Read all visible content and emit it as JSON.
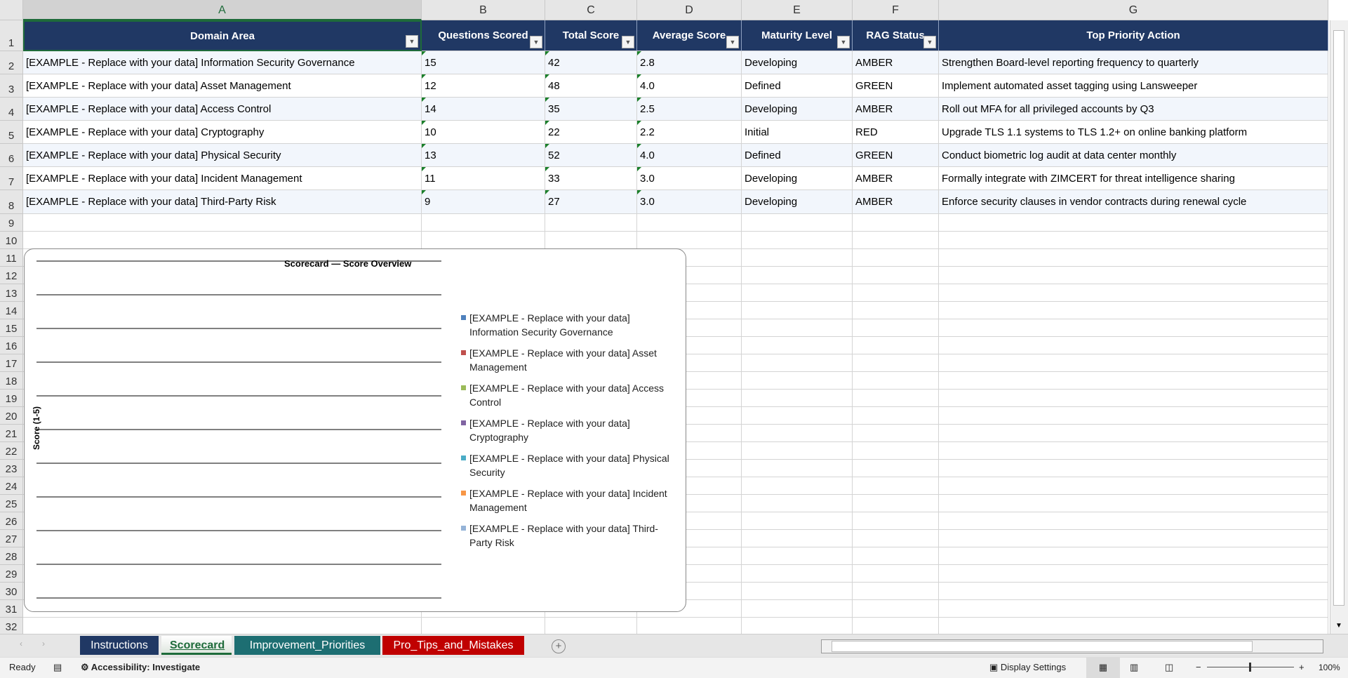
{
  "columns": [
    "A",
    "B",
    "C",
    "D",
    "E",
    "F",
    "G"
  ],
  "table": {
    "headers": [
      "Domain Area",
      "Questions Scored",
      "Total Score",
      "Average Score",
      "Maturity Level",
      "RAG Status",
      "Top Priority Action"
    ],
    "rows": [
      [
        "[EXAMPLE - Replace with your data] Information Security Governance",
        "15",
        "42",
        "2.8",
        "Developing",
        "AMBER",
        "Strengthen Board-level reporting frequency to quarterly"
      ],
      [
        "[EXAMPLE - Replace with your data] Asset Management",
        "12",
        "48",
        "4.0",
        "Defined",
        "GREEN",
        "Implement automated asset tagging using Lansweeper"
      ],
      [
        "[EXAMPLE - Replace with your data] Access Control",
        "14",
        "35",
        "2.5",
        "Developing",
        "AMBER",
        "Roll out MFA for all privileged accounts by Q3"
      ],
      [
        "[EXAMPLE - Replace with your data] Cryptography",
        "10",
        "22",
        "2.2",
        "Initial",
        "RED",
        "Upgrade TLS 1.1 systems to TLS 1.2+ on online banking platform"
      ],
      [
        "[EXAMPLE - Replace with your data] Physical Security",
        "13",
        "52",
        "4.0",
        "Defined",
        "GREEN",
        "Conduct biometric log audit at data center monthly"
      ],
      [
        "[EXAMPLE - Replace with your data] Incident Management",
        "11",
        "33",
        "3.0",
        "Developing",
        "AMBER",
        "Formally integrate with ZIMCERT for threat intelligence sharing"
      ],
      [
        "[EXAMPLE - Replace with your data] Third-Party Risk",
        "9",
        "27",
        "3.0",
        "Developing",
        "AMBER",
        "Enforce security clauses in vendor contracts during renewal cycle"
      ]
    ]
  },
  "row_numbers": [
    "1",
    "2",
    "3",
    "4",
    "5",
    "6",
    "7",
    "8",
    "9",
    "10",
    "11",
    "12",
    "13",
    "14",
    "15",
    "16",
    "17",
    "18",
    "19",
    "20",
    "21",
    "22",
    "23",
    "24",
    "25",
    "26",
    "27",
    "28",
    "29",
    "30",
    "31",
    "32"
  ],
  "chart_data": {
    "type": "bar",
    "title": "Scorecard — Score Overview",
    "ylabel": "Score (1-5)",
    "xlabel": "",
    "gridlines": true,
    "legend_placement": "right",
    "series": [
      {
        "name": "[EXAMPLE - Replace with your data] Information Security Governance",
        "color": "#4f81bd",
        "values": []
      },
      {
        "name": "[EXAMPLE - Replace with your data] Asset Management",
        "color": "#c0504d",
        "values": []
      },
      {
        "name": "[EXAMPLE - Replace with your data] Access Control",
        "color": "#9bbb59",
        "values": []
      },
      {
        "name": "[EXAMPLE - Replace with your data] Cryptography",
        "color": "#8064a2",
        "values": []
      },
      {
        "name": "[EXAMPLE - Replace with your data] Physical Security",
        "color": "#4bacc6",
        "values": []
      },
      {
        "name": "[EXAMPLE - Replace with your data] Incident Management",
        "color": "#f79646",
        "values": []
      },
      {
        "name": "[EXAMPLE - Replace with your data] Third-Party Risk",
        "color": "#95b3d7",
        "values": []
      }
    ]
  },
  "sheets": [
    {
      "label": "Instructions",
      "color": "#203864",
      "active": false
    },
    {
      "label": "Scorecard",
      "color": "#1e6b3a",
      "active": true
    },
    {
      "label": "Improvement_Priorities",
      "color": "#1d6e72",
      "active": false
    },
    {
      "label": "Pro_Tips_and_Mistakes",
      "color": "#c00000",
      "active": false
    }
  ],
  "status": {
    "ready": "Ready",
    "accessibility": "Accessibility: Investigate",
    "display_settings": "Display Settings",
    "zoom": "100%"
  }
}
